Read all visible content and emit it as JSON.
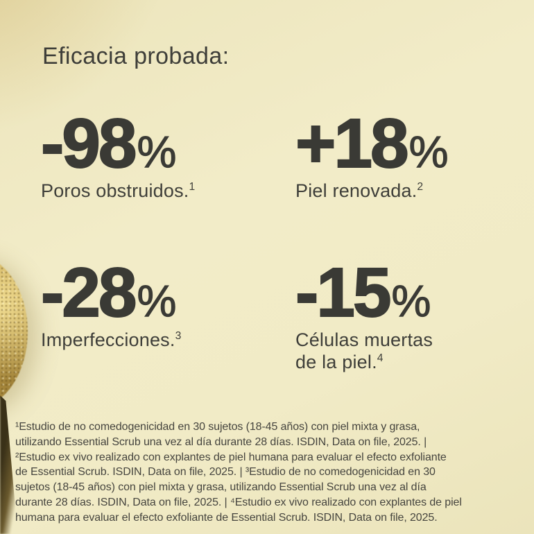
{
  "title": "Eficacia probada:",
  "stats": [
    {
      "value": "-98",
      "unit": "%",
      "label": "Poros obstruidos.",
      "footnote_mark": "1"
    },
    {
      "value": "+18",
      "unit": "%",
      "label": "Piel renovada.",
      "footnote_mark": "2"
    },
    {
      "value": "-28",
      "unit": "%",
      "label": "Imperfecciones.",
      "footnote_mark": "3"
    },
    {
      "value": "-15",
      "unit": "%",
      "label": "Células muertas de la piel.",
      "footnote_mark": "4"
    }
  ],
  "footnotes": {
    "lines": [
      "¹Estudio de no comedogenicidad en 30 sujetos (18-45 años) con piel mixta y grasa,",
      "utilizando Essential Scrub una vez al día durante 28 días. ISDIN, Data on file, 2025. |",
      "²Estudio ex vivo realizado con explantes de piel humana para evaluar el efecto exfoliante",
      "de Essential Scrub. ISDIN, Data on file, 2025. | ³Estudio de no comedogenicidad en 30",
      "sujetos (18-45 años) con piel mixta y grasa, utilizando Essential Scrub una vez al día",
      "durante 28 días. ISDIN, Data on file, 2025. | ⁴Estudio ex vivo realizado con explantes de piel",
      "humana para evaluar el efecto exfoliante de Essential Scrub. ISDIN, Data on file, 2025."
    ]
  },
  "colors": {
    "background": "#f1ebc6",
    "text_dark": "#3a3a35",
    "footnote_text": "#45443e",
    "accent_gold": "#c2a04b",
    "shadow_brown": "#3a3118"
  }
}
